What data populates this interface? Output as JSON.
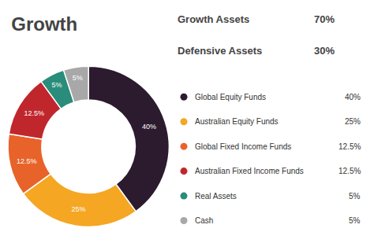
{
  "chart_data": {
    "type": "pie",
    "title": "Growth",
    "annotations": [
      {
        "text": "Growth Assets",
        "value": 70,
        "value_label": "70%"
      },
      {
        "text": "Defensive Assets",
        "value": 30,
        "value_label": "30%"
      }
    ],
    "categories": [
      "Global Equity Funds",
      "Australian Equity Funds",
      "Global Fixed Income Funds",
      "Australian Fixed Income Funds",
      "Real Assets",
      "Cash"
    ],
    "values": [
      40,
      25,
      12.5,
      12.5,
      5,
      5
    ],
    "value_labels": [
      "40%",
      "25%",
      "12.5%",
      "12.5%",
      "5%",
      "5%"
    ],
    "colors": [
      "#2C1A2E",
      "#F5A623",
      "#E8632A",
      "#C0272D",
      "#2A8C7A",
      "#A8A8A8"
    ],
    "data_labels": true,
    "legend": "right"
  }
}
